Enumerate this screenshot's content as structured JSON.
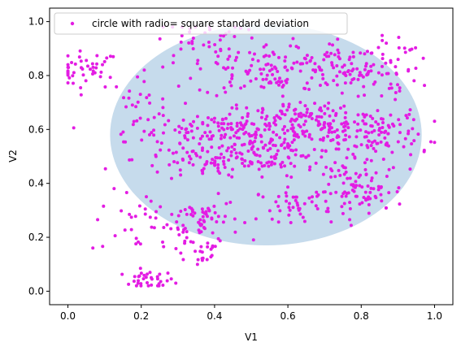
{
  "chart_data": {
    "type": "scatter",
    "xlabel": "V1",
    "ylabel": "V2",
    "xlim": [
      -0.05,
      1.05
    ],
    "ylim": [
      -0.05,
      1.05
    ],
    "x_ticks": [
      0.0,
      0.2,
      0.4,
      0.6,
      0.8,
      1.0
    ],
    "y_ticks": [
      0.0,
      0.2,
      0.4,
      0.6,
      0.8,
      1.0
    ],
    "x_tick_labels": [
      "0.0",
      "0.2",
      "0.4",
      "0.6",
      "0.8",
      "1.0"
    ],
    "y_tick_labels": [
      "0.0",
      "0.2",
      "0.4",
      "0.6",
      "0.8",
      "1.0"
    ],
    "grid": false,
    "legend": {
      "placement": "top-left",
      "entries": [
        "circle with radio= square standard deviation"
      ]
    },
    "ellipse": {
      "center": [
        0.54,
        0.58
      ],
      "radius_x": 0.425,
      "radius_y": 0.41,
      "color": "#c6dbec"
    },
    "point_color": "#e31ce3",
    "clusters": [
      {
        "cx": 0.05,
        "cy": 0.82,
        "sx": 0.045,
        "sy": 0.035,
        "n": 45
      },
      {
        "cx": 0.22,
        "cy": 0.04,
        "sx": 0.035,
        "sy": 0.018,
        "n": 35
      },
      {
        "cx": 0.22,
        "cy": 0.25,
        "sx": 0.08,
        "sy": 0.06,
        "n": 40
      },
      {
        "cx": 0.35,
        "cy": 0.15,
        "sx": 0.04,
        "sy": 0.03,
        "n": 25
      },
      {
        "cx": 0.37,
        "cy": 0.27,
        "sx": 0.05,
        "sy": 0.04,
        "n": 55
      },
      {
        "cx": 0.45,
        "cy": 0.6,
        "sx": 0.15,
        "sy": 0.025,
        "n": 130
      },
      {
        "cx": 0.42,
        "cy": 0.49,
        "sx": 0.12,
        "sy": 0.04,
        "n": 100
      },
      {
        "cx": 0.6,
        "cy": 0.52,
        "sx": 0.14,
        "sy": 0.04,
        "n": 110
      },
      {
        "cx": 0.65,
        "cy": 0.64,
        "sx": 0.12,
        "sy": 0.035,
        "n": 110
      },
      {
        "cx": 0.55,
        "cy": 0.82,
        "sx": 0.1,
        "sy": 0.05,
        "n": 110
      },
      {
        "cx": 0.36,
        "cy": 0.92,
        "sx": 0.06,
        "sy": 0.05,
        "n": 45
      },
      {
        "cx": 0.79,
        "cy": 0.82,
        "sx": 0.08,
        "sy": 0.06,
        "n": 110
      },
      {
        "cx": 0.8,
        "cy": 0.57,
        "sx": 0.08,
        "sy": 0.05,
        "n": 75
      },
      {
        "cx": 0.8,
        "cy": 0.37,
        "sx": 0.06,
        "sy": 0.04,
        "n": 80
      },
      {
        "cx": 0.62,
        "cy": 0.32,
        "sx": 0.05,
        "sy": 0.03,
        "n": 45
      },
      {
        "cx": 0.22,
        "cy": 0.7,
        "sx": 0.05,
        "sy": 0.05,
        "n": 25
      },
      {
        "cx": 0.93,
        "cy": 0.87,
        "sx": 0.03,
        "sy": 0.03,
        "n": 10
      },
      {
        "cx": 0.88,
        "cy": 0.57,
        "sx": 0.04,
        "sy": 0.05,
        "n": 25
      }
    ]
  }
}
